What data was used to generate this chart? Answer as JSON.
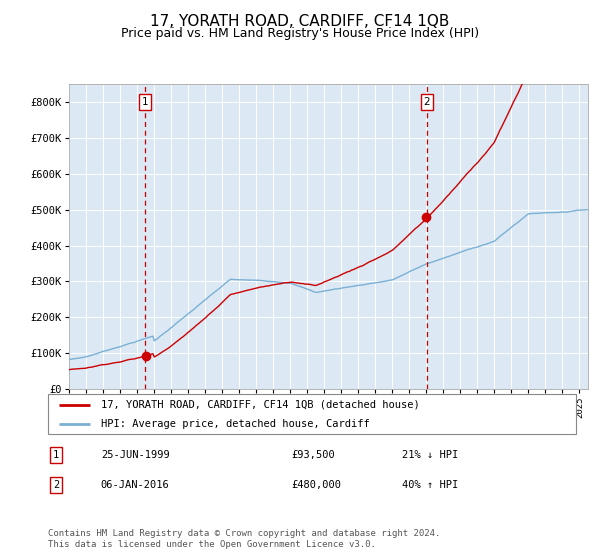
{
  "title": "17, YORATH ROAD, CARDIFF, CF14 1QB",
  "subtitle": "Price paid vs. HM Land Registry's House Price Index (HPI)",
  "title_fontsize": 11,
  "subtitle_fontsize": 9,
  "bg_color": "#dce9f5",
  "fig_bg_color": "#ffffff",
  "ylim": [
    0,
    850000
  ],
  "yticks": [
    0,
    100000,
    200000,
    300000,
    400000,
    500000,
    600000,
    700000,
    800000
  ],
  "ytick_labels": [
    "£0",
    "£100K",
    "£200K",
    "£300K",
    "£400K",
    "£500K",
    "£600K",
    "£700K",
    "£800K"
  ],
  "hpi_color": "#7ab0d4",
  "price_color": "#cc0000",
  "sale1_date": 1999.49,
  "sale1_price": 93500,
  "sale2_date": 2016.02,
  "sale2_price": 480000,
  "legend_price_label": "17, YORATH ROAD, CARDIFF, CF14 1QB (detached house)",
  "legend_hpi_label": "HPI: Average price, detached house, Cardiff",
  "note1_label": "1",
  "note1_date": "25-JUN-1999",
  "note1_price": "£93,500",
  "note1_hpi": "21% ↓ HPI",
  "note2_label": "2",
  "note2_date": "06-JAN-2016",
  "note2_price": "£480,000",
  "note2_hpi": "40% ↑ HPI",
  "footer": "Contains HM Land Registry data © Crown copyright and database right 2024.\nThis data is licensed under the Open Government Licence v3.0.",
  "xmin": 1995,
  "xmax": 2025.5
}
